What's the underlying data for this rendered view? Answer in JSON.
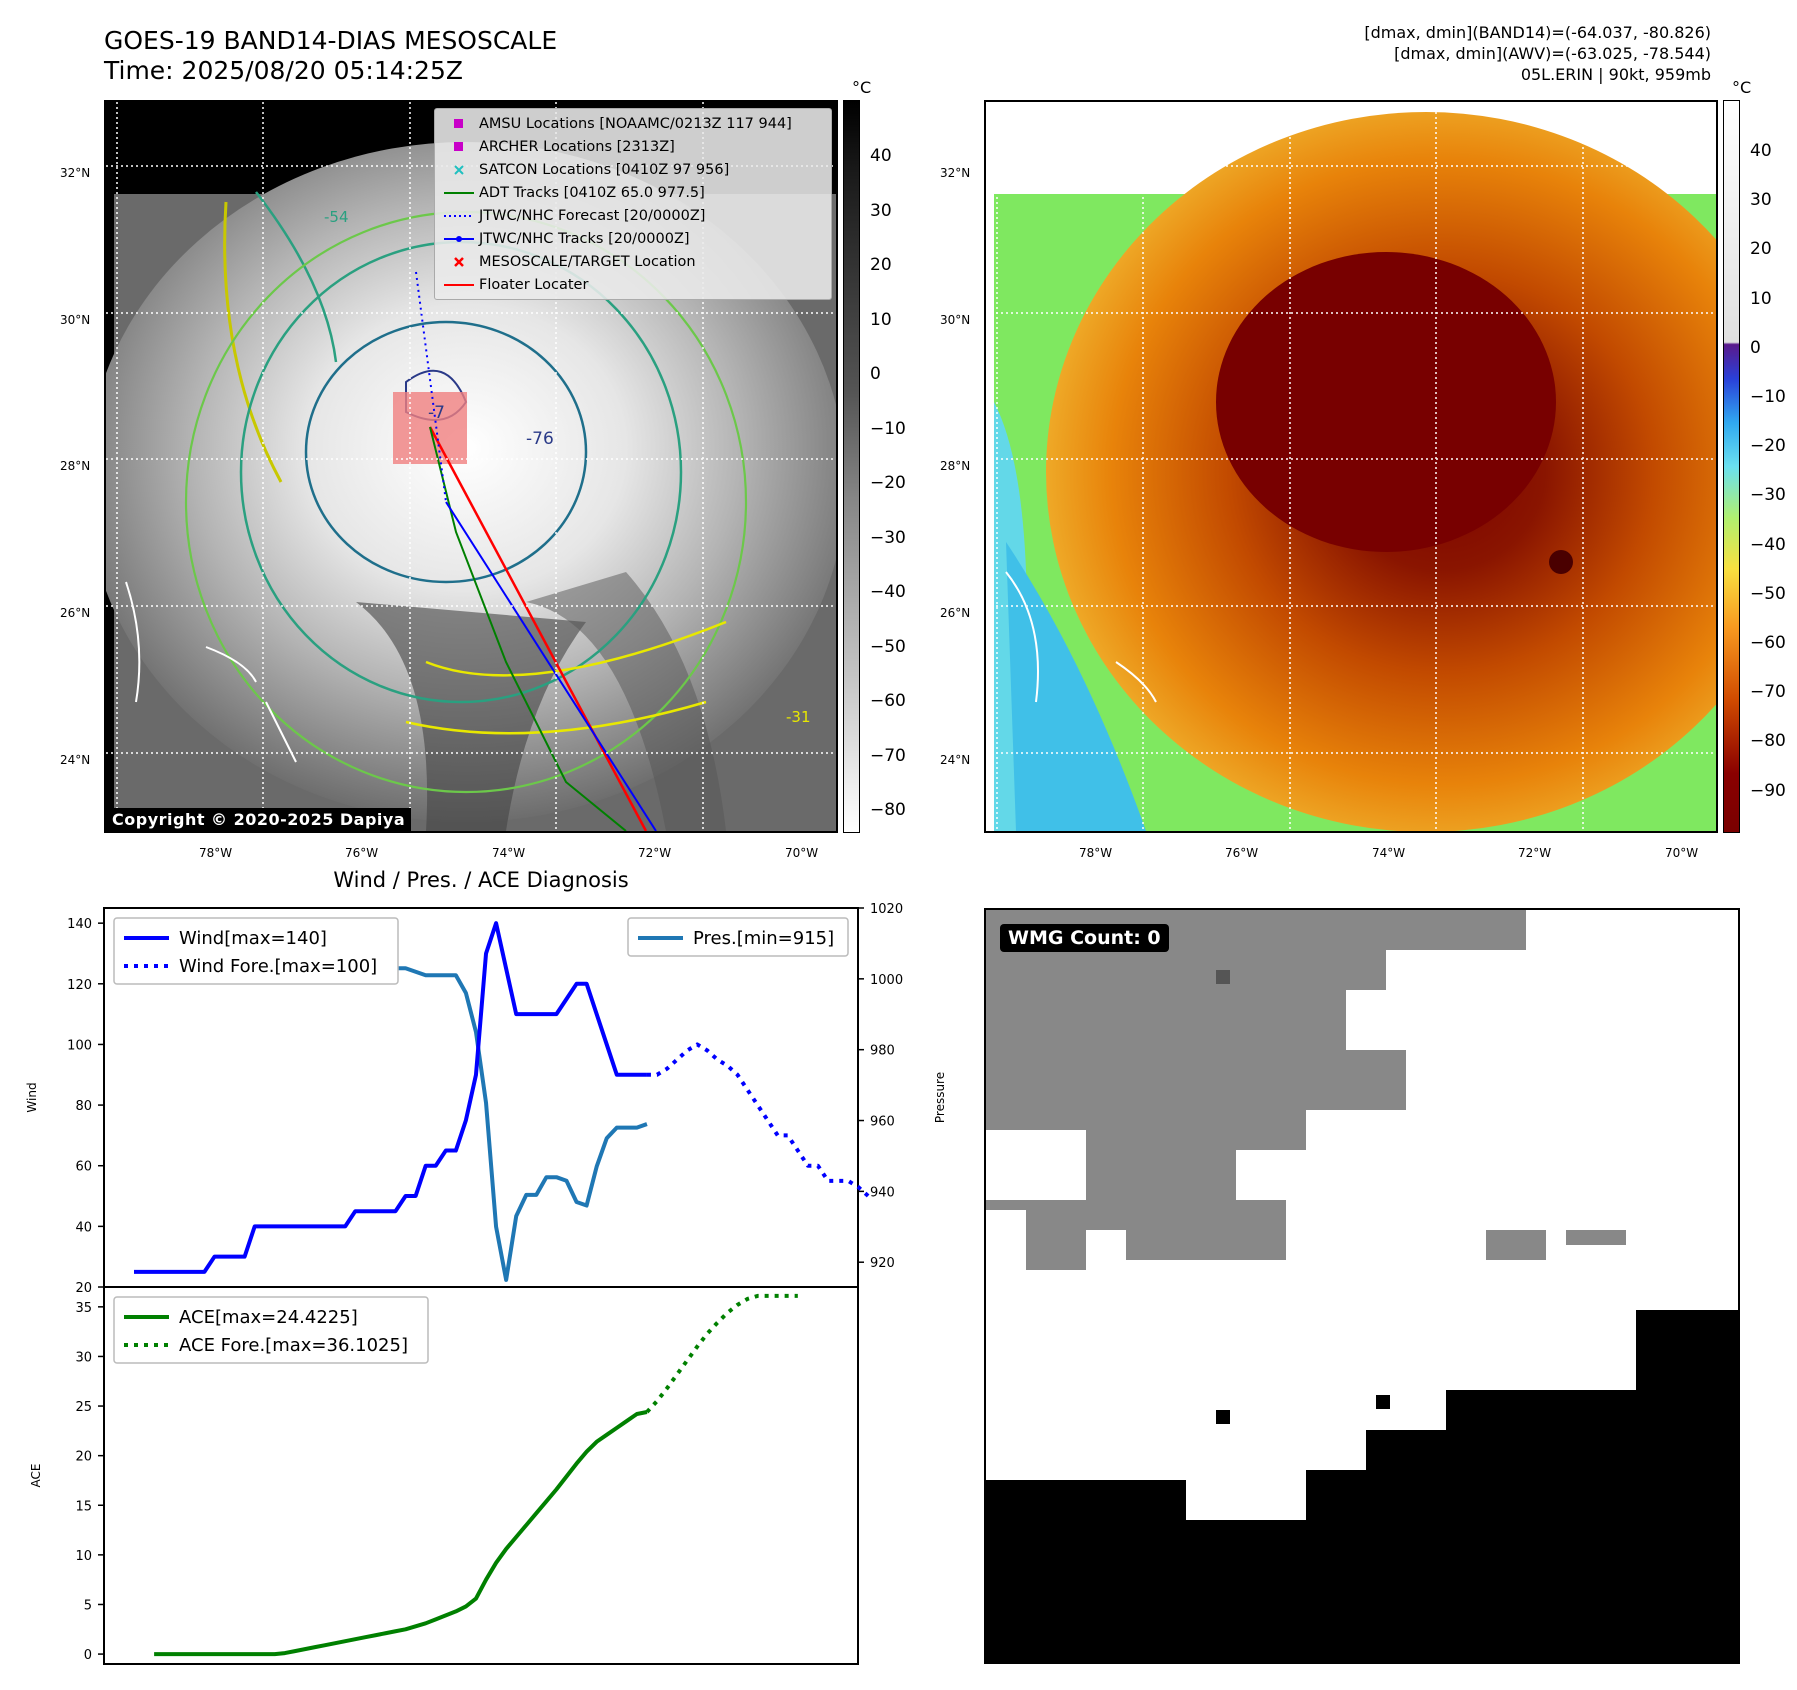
{
  "header": {
    "title_line1": "GOES-19 BAND14-DIAS MESOSCALE",
    "title_line2": "Time: 2025/08/20 05:14:25Z",
    "meta_line1": "[dmax, dmin](BAND14)=(-64.037, -80.826)",
    "meta_line2": "[dmax, dmin](AWV)=(-63.025, -78.544)",
    "meta_line3": "05L.ERIN | 90kt, 959mb"
  },
  "map_ir": {
    "lat_labels": [
      "32°N",
      "30°N",
      "28°N",
      "26°N",
      "24°N"
    ],
    "lon_labels": [
      "78°W",
      "76°W",
      "74°W",
      "72°W",
      "70°W"
    ],
    "contour_labels": [
      "-54",
      "-76",
      "-7",
      "-31"
    ],
    "copyright": "Copyright © 2020-2025 Dapiya",
    "legend": [
      {
        "label": "AMSU Locations [NOAAMC/0213Z 117 944]",
        "color": "#c800c8",
        "marker": "square"
      },
      {
        "label": "ARCHER Locations [2313Z]",
        "color": "#c800c8",
        "marker": "square"
      },
      {
        "label": "SATCON Locations [0410Z 97 956]",
        "color": "#20c0c0",
        "marker": "x"
      },
      {
        "label": "ADT Tracks [0410Z 65.0 977.5]",
        "color": "#008000",
        "marker": "line"
      },
      {
        "label": "JTWC/NHC Forecast [20/0000Z]",
        "color": "#0000ff",
        "marker": "dotted"
      },
      {
        "label": "JTWC/NHC Tracks [20/0000Z]",
        "color": "#0000ff",
        "marker": "line-dot"
      },
      {
        "label": "MESOSCALE/TARGET Location",
        "color": "#ff0000",
        "marker": "x"
      },
      {
        "label": "Floater Locater",
        "color": "#ff0000",
        "marker": "line"
      }
    ]
  },
  "colorbar_ir": {
    "unit": "°C",
    "ticks": [
      "40",
      "30",
      "20",
      "10",
      "0",
      "−10",
      "−20",
      "−30",
      "−40",
      "−50",
      "−60",
      "−70",
      "−80"
    ]
  },
  "colorbar_color": {
    "unit": "°C",
    "ticks": [
      "40",
      "30",
      "20",
      "10",
      "0",
      "−10",
      "−20",
      "−30",
      "−40",
      "−50",
      "−60",
      "−70",
      "−80",
      "−90"
    ]
  },
  "wmg": {
    "label": "WMG Count: 0"
  },
  "chart_data": [
    {
      "type": "line",
      "title": "Wind / Pres. / ACE Diagnosis",
      "ylabel": "Wind",
      "ylabel_right": "Pressure",
      "ylim": [
        20,
        145
      ],
      "ylim_right": [
        913,
        1020
      ],
      "yticks": [
        20,
        40,
        60,
        80,
        100,
        120,
        140
      ],
      "yticks_right": [
        920,
        940,
        960,
        980,
        1000,
        1020
      ],
      "legend_left": [
        "Wind[max=140]",
        "Wind Fore.[max=100]"
      ],
      "legend_right": [
        "Pres.[min=915]"
      ],
      "series": [
        {
          "name": "Wind[max=140]",
          "color": "#0000ff",
          "style": "solid",
          "values": [
            25,
            25,
            25,
            25,
            25,
            25,
            25,
            25,
            30,
            30,
            30,
            30,
            40,
            40,
            40,
            40,
            40,
            40,
            40,
            40,
            40,
            40,
            45,
            45,
            45,
            45,
            45,
            50,
            50,
            60,
            60,
            65,
            65,
            75,
            90,
            130,
            140,
            125,
            110,
            110,
            110,
            110,
            110,
            115,
            120,
            120,
            110,
            100,
            90,
            90,
            90,
            90
          ]
        },
        {
          "name": "Wind Fore.[max=100]",
          "color": "#0000ff",
          "style": "dotted",
          "values": [
            90,
            90,
            92,
            95,
            98,
            100,
            98,
            95,
            93,
            90,
            85,
            80,
            75,
            70,
            70,
            65,
            60,
            60,
            55,
            55,
            55,
            53,
            50
          ]
        },
        {
          "name": "Pres.[min=915]",
          "color": "#1f77b4",
          "style": "solid",
          "values": [
            1014,
            1014,
            1009,
            1008,
            1007,
            1007,
            1007,
            1007,
            1006,
            1006,
            1006,
            1005,
            1005,
            1005,
            1005,
            1005,
            1005,
            1006,
            1005,
            1005,
            1004,
            1004,
            1003,
            1003,
            1003,
            1003,
            1003,
            1003,
            1002,
            1001,
            1001,
            1001,
            1001,
            996,
            985,
            965,
            930,
            915,
            933,
            939,
            939,
            944,
            944,
            943,
            937,
            936,
            947,
            955,
            958,
            958,
            958,
            959
          ]
        }
      ]
    },
    {
      "type": "line",
      "ylabel": "ACE",
      "ylim": [
        -1,
        37
      ],
      "yticks": [
        0,
        5,
        10,
        15,
        20,
        25,
        30,
        35
      ],
      "legend": [
        "ACE[max=24.4225]",
        "ACE Fore.[max=36.1025]"
      ],
      "series": [
        {
          "name": "ACE[max=24.4225]",
          "color": "#008000",
          "style": "solid",
          "values": [
            0,
            0,
            0,
            0,
            0,
            0,
            0,
            0,
            0,
            0,
            0,
            0,
            0,
            0.1,
            0.3,
            0.5,
            0.7,
            0.9,
            1.1,
            1.3,
            1.5,
            1.7,
            1.9,
            2.1,
            2.3,
            2.5,
            2.8,
            3.1,
            3.5,
            3.9,
            4.3,
            4.8,
            5.6,
            7.5,
            9.2,
            10.6,
            11.8,
            13,
            14.2,
            15.4,
            16.6,
            17.9,
            19.2,
            20.4,
            21.4,
            22.1,
            22.8,
            23.5,
            24.2,
            24.4
          ]
        },
        {
          "name": "ACE Fore.[max=36.1025]",
          "color": "#008000",
          "style": "dotted",
          "values": [
            24.4,
            25.5,
            26.8,
            28.2,
            29.6,
            31,
            32.3,
            33.4,
            34.4,
            35.2,
            35.8,
            36.1,
            36.1,
            36.1,
            36.1,
            36.1
          ]
        }
      ]
    }
  ]
}
